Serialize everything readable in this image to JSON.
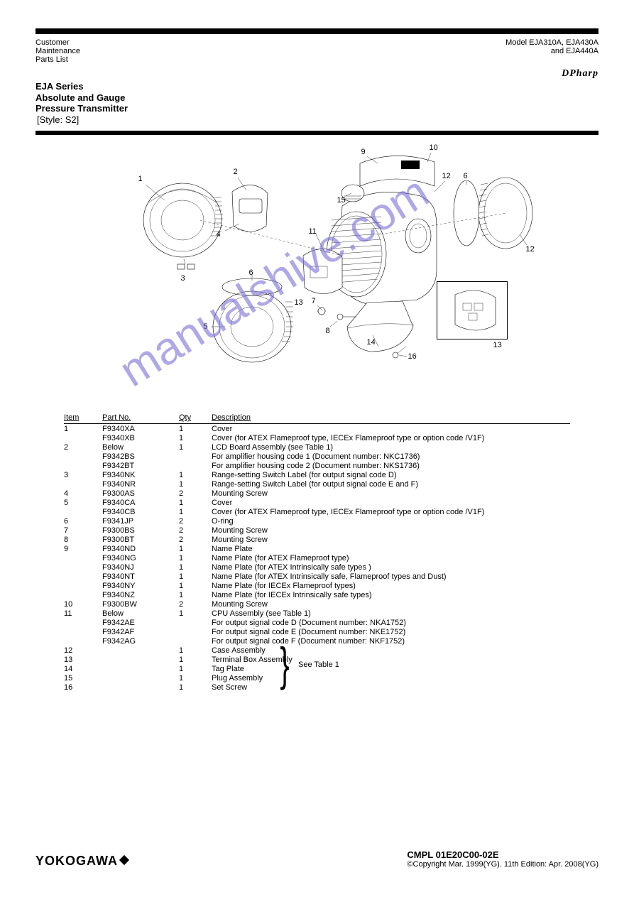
{
  "header": {
    "left_line1": "Customer",
    "left_line2": "Maintenance",
    "left_line3": "Parts List",
    "right_line1": "Model EJA310A, EJA430A",
    "right_line2": "and EJA440A",
    "logo": "DPharp",
    "title_main": "EJA Series",
    "title_sub1": "Absolute and Gauge",
    "title_sub2": "Pressure Transmitter",
    "title_note": "[Style: S2]"
  },
  "callouts": {
    "c1": "1",
    "c2": "2",
    "c3": "3",
    "c4": "4",
    "c5": "5",
    "c6": "6",
    "c7": "7",
    "c8": "8",
    "c9": "9",
    "c10": "10",
    "c11": "11",
    "c12": "12",
    "c12a": "12",
    "c13": "13",
    "c14": "14",
    "c15": "15",
    "c16": "16",
    "c13a": "13"
  },
  "table": {
    "headers": {
      "item": "Item",
      "part": "Part No.",
      "qty": "Qty",
      "desc": "Description"
    },
    "rows": [
      {
        "item": "1",
        "part": "F9340XA",
        "qty": "1",
        "desc": "Cover"
      },
      {
        "item": "",
        "part": "F9340XB",
        "qty": "1",
        "desc": "Cover (for ATEX Flameproof type, IECEx Flameproof type or option code /V1F)"
      },
      {
        "item": "2",
        "part": "Below",
        "qty": "1",
        "desc": "LCD Board Assembly (see Table 1)"
      },
      {
        "item": "",
        "part": "F9342BS",
        "qty": "",
        "desc": "For amplifier housing code 1 (Document number: NKC1736)"
      },
      {
        "item": "",
        "part": "F9342BT",
        "qty": "",
        "desc": "For amplifier housing code 2 (Document number: NKS1736)"
      },
      {
        "item": "3",
        "part": "F9340NK",
        "qty": "1",
        "desc": "Range-setting Switch Label (for output signal code D)"
      },
      {
        "item": "",
        "part": "F9340NR",
        "qty": "1",
        "desc": "Range-setting Switch Label (for output signal code E and F)"
      },
      {
        "item": "4",
        "part": "F9300AS",
        "qty": "2",
        "desc": "Mounting Screw"
      },
      {
        "item": "5",
        "part": "F9340CA",
        "qty": "1",
        "desc": "Cover"
      },
      {
        "item": "",
        "part": "F9340CB",
        "qty": "1",
        "desc": "Cover (for ATEX Flameproof type, IECEx Flameproof type or option code /V1F)"
      },
      {
        "item": "6",
        "part": "F9341JP",
        "qty": "2",
        "desc": "O-ring"
      },
      {
        "item": "7",
        "part": "F9300BS",
        "qty": "2",
        "desc": "Mounting Screw"
      },
      {
        "item": "8",
        "part": "F9300BT",
        "qty": "2",
        "desc": "Mounting Screw"
      },
      {
        "item": "9",
        "part": "F9340ND",
        "qty": "1",
        "desc": "Name Plate"
      },
      {
        "item": "",
        "part": "F9340NG",
        "qty": "1",
        "desc": "Name Plate (for ATEX Flameproof type)"
      },
      {
        "item": "",
        "part": "F9340NJ",
        "qty": "1",
        "desc": "Name Plate (for ATEX Intrinsically safe types )"
      },
      {
        "item": "",
        "part": "F9340NT",
        "qty": "1",
        "desc": "Name Plate (for ATEX Intrinsically safe, Flameproof types and Dust)"
      },
      {
        "item": "",
        "part": "F9340NY",
        "qty": "1",
        "desc": "Name Plate (for IECEx Flameproof types)"
      },
      {
        "item": "",
        "part": "F9340NZ",
        "qty": "1",
        "desc": "Name Plate (for IECEx Intrinsically safe types)"
      },
      {
        "item": "10",
        "part": "F9300BW",
        "qty": "2",
        "desc": "Mounting Screw"
      },
      {
        "item": "11",
        "part": "Below",
        "qty": "1",
        "desc": "CPU Assembly (see Table 1)"
      },
      {
        "item": "",
        "part": "F9342AE",
        "qty": "",
        "desc": "For output signal code D (Document number: NKA1752)"
      },
      {
        "item": "",
        "part": "F9342AF",
        "qty": "",
        "desc": "For output signal code E (Document number: NKE1752)"
      },
      {
        "item": "",
        "part": "F9342AG",
        "qty": "",
        "desc": "For output signal code F (Document number: NKF1752)"
      },
      {
        "item": "12",
        "part": "",
        "qty": "1",
        "desc": "Case Assembly"
      },
      {
        "item": "13",
        "part": "",
        "qty": "1",
        "desc": "Terminal Box Assembly"
      },
      {
        "item": "14",
        "part": "",
        "qty": "1",
        "desc": "Tag Plate"
      },
      {
        "item": "15",
        "part": "",
        "qty": "1",
        "desc": "Plug Assembly"
      },
      {
        "item": "16",
        "part": "",
        "qty": "1",
        "desc": "Set Screw"
      }
    ],
    "see_table": "See Table 1"
  },
  "footer": {
    "brand": "YOKOGAWA",
    "doc": "CMPL 01E20C00-02E",
    "copyright": "©Copyright Mar. 1999(YG). 11th Edition: Apr. 2008(YG)"
  },
  "watermark": "manualshive.com"
}
